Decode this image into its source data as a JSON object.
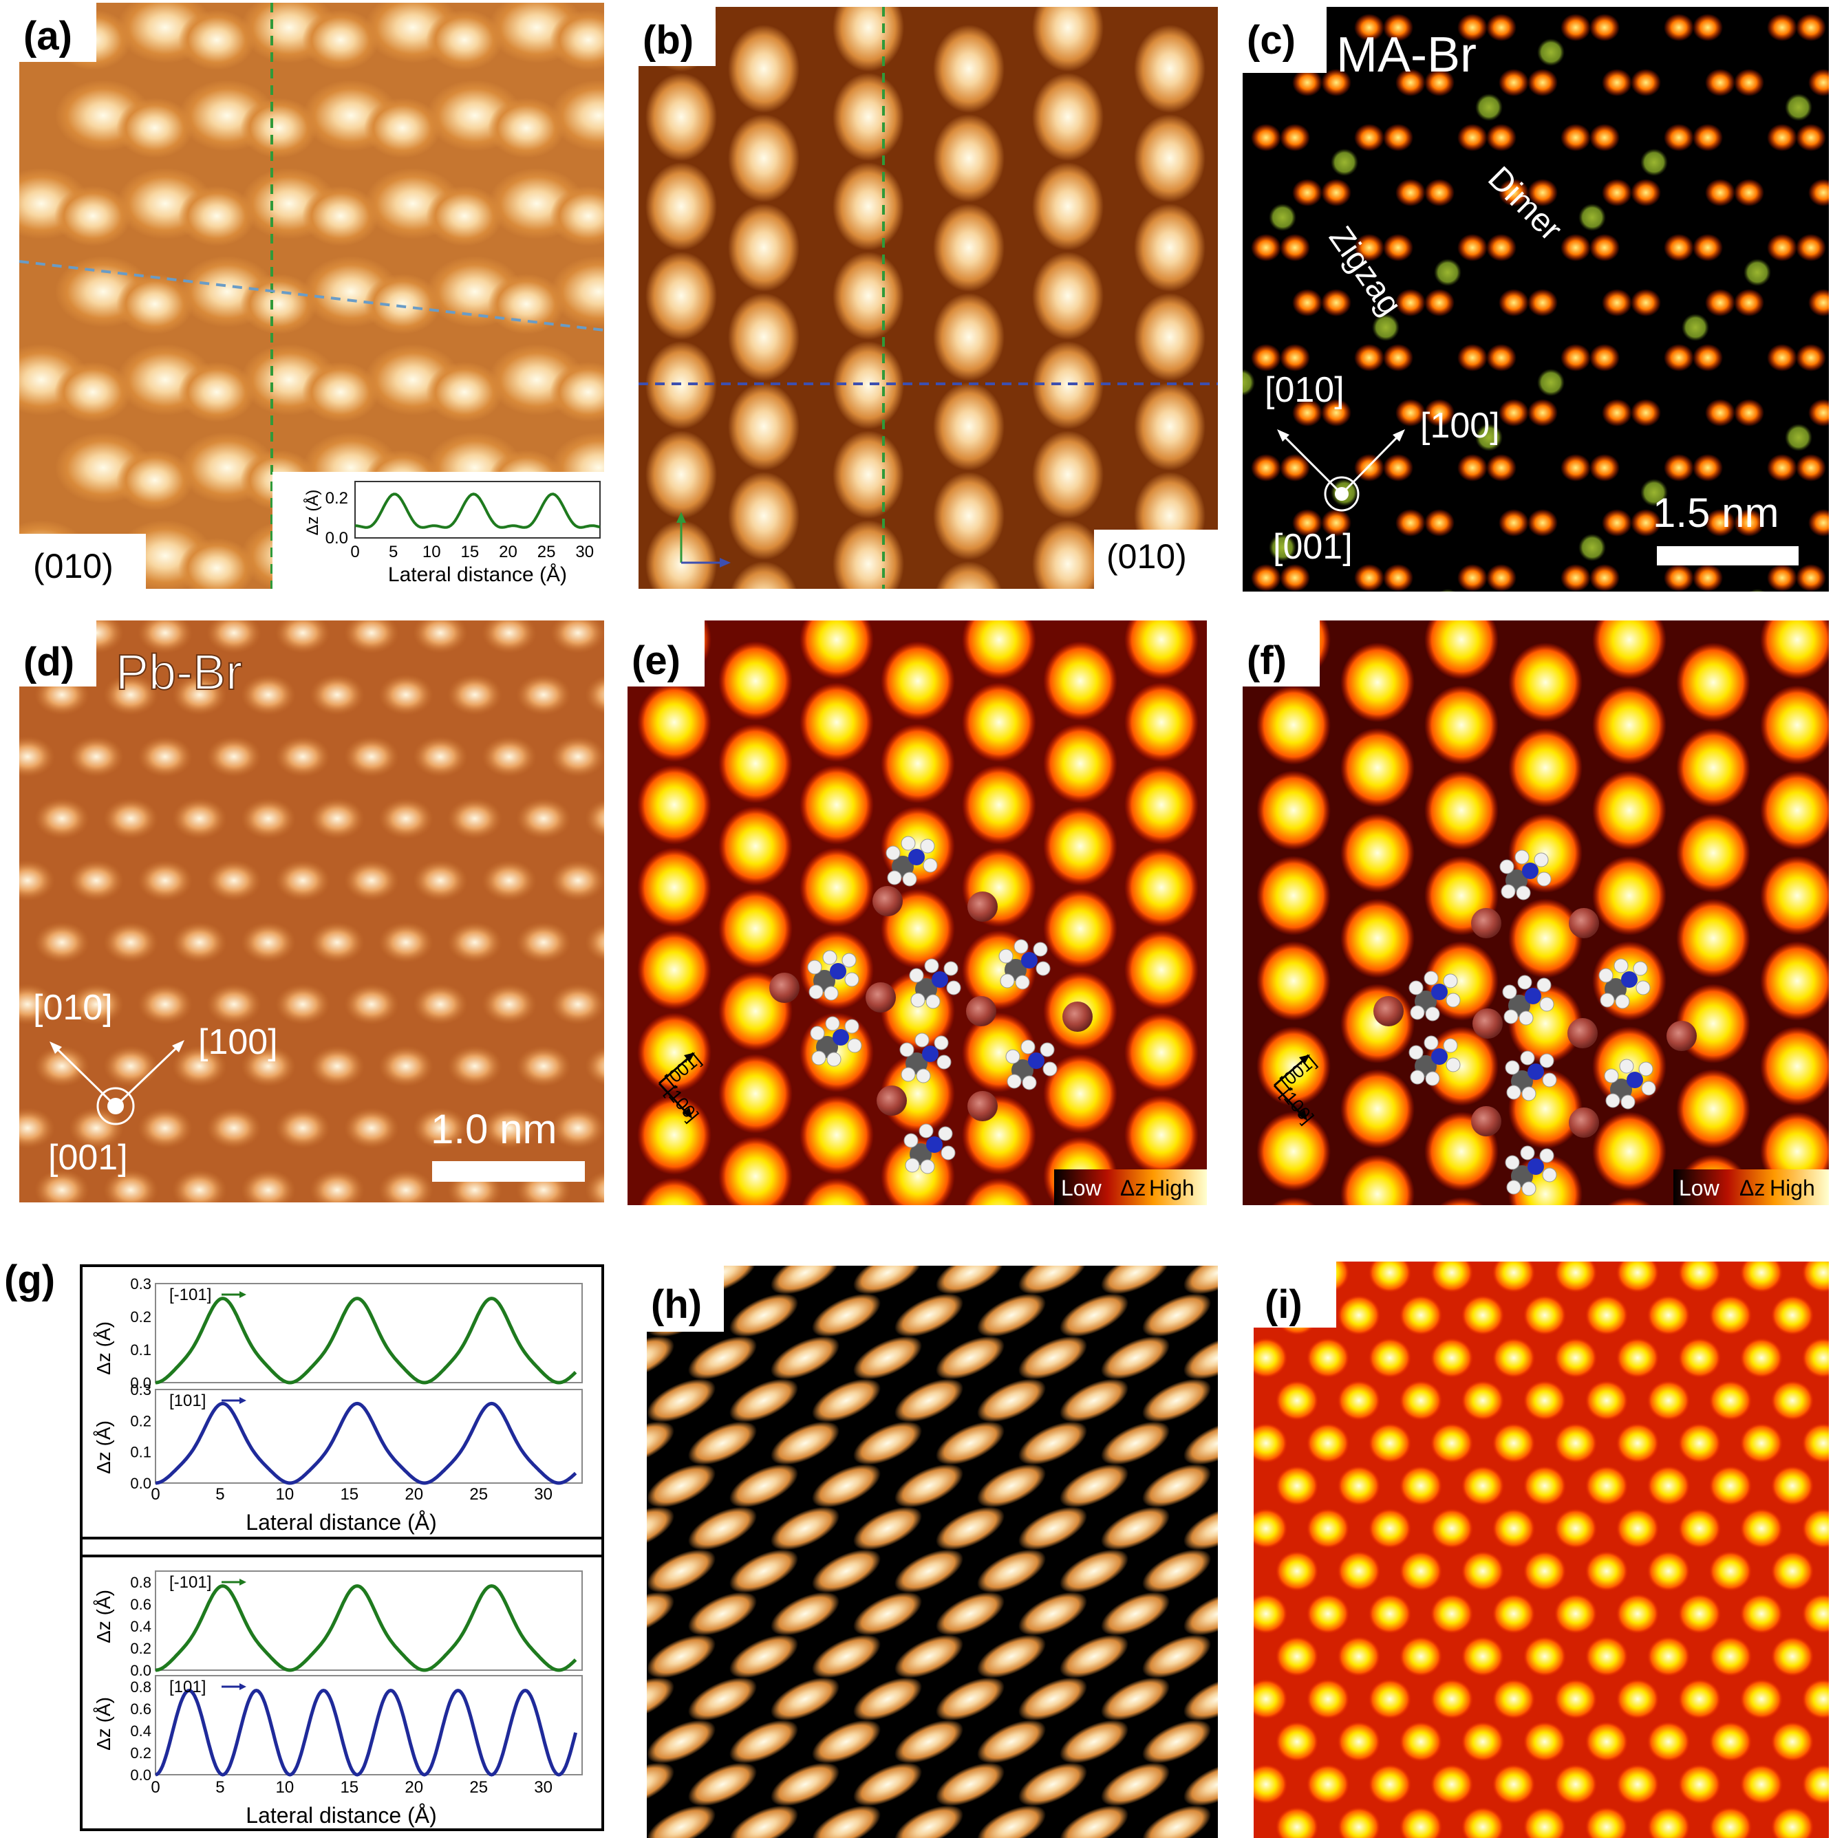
{
  "panels": {
    "a": {
      "label": "(a)",
      "face": "(010)",
      "inset": {
        "ylabel": "Δz (Å)",
        "xlabel": "Lateral distance (Å)",
        "yticks": [
          "0.0",
          "0.2"
        ],
        "xticks": [
          "0",
          "5",
          "10",
          "15",
          "20",
          "25",
          "30"
        ]
      }
    },
    "b": {
      "label": "(b)",
      "face": "(010)"
    },
    "c": {
      "label": "(c)",
      "title": "MA-Br",
      "annotations": [
        "Dimer",
        "Zigzag"
      ],
      "dir_010": "[010]",
      "dir_100": "[100]",
      "dir_001": "[001]",
      "scalebar": "1.5 nm"
    },
    "d": {
      "label": "(d)",
      "title": "Pb-Br",
      "dir_010": "[010]",
      "dir_100": "[100]",
      "dir_001": "[001]",
      "scalebar": "1.0 nm"
    },
    "e": {
      "label": "(e)",
      "axis_001": "[001]",
      "axis_100": "[100]",
      "colorbar": {
        "low": "Low",
        "mid": "Δz",
        "high": "High"
      }
    },
    "f": {
      "label": "(f)",
      "axis_001": "[001]",
      "axis_100": "[100]",
      "colorbar": {
        "low": "Low",
        "mid": "Δz",
        "high": "High"
      }
    },
    "g": {
      "label": "(g)",
      "ylabel": "Δz (Å)",
      "xlabel": "Lateral distance (Å)",
      "xticks": [
        "0",
        "5",
        "10",
        "15",
        "20",
        "25",
        "30"
      ],
      "top": {
        "legend1": "[-101]",
        "legend2": "[101]",
        "yticks": [
          "0.0",
          "0.1",
          "0.2",
          "0.3"
        ]
      },
      "bottom": {
        "legend1": "[-101]",
        "legend2": "[101]",
        "yticks": [
          "0.0",
          "0.2",
          "0.4",
          "0.6",
          "0.8"
        ]
      }
    },
    "h": {
      "label": "(h)"
    },
    "i": {
      "label": "(i)"
    }
  },
  "colors": {
    "green_curve": "#1e7a1e",
    "blue_curve": "#1f2a9a",
    "green_dash": "#2f9a3a",
    "blue_dash": "#3c4fb0",
    "light_blue_dash": "#6a9cc6"
  }
}
